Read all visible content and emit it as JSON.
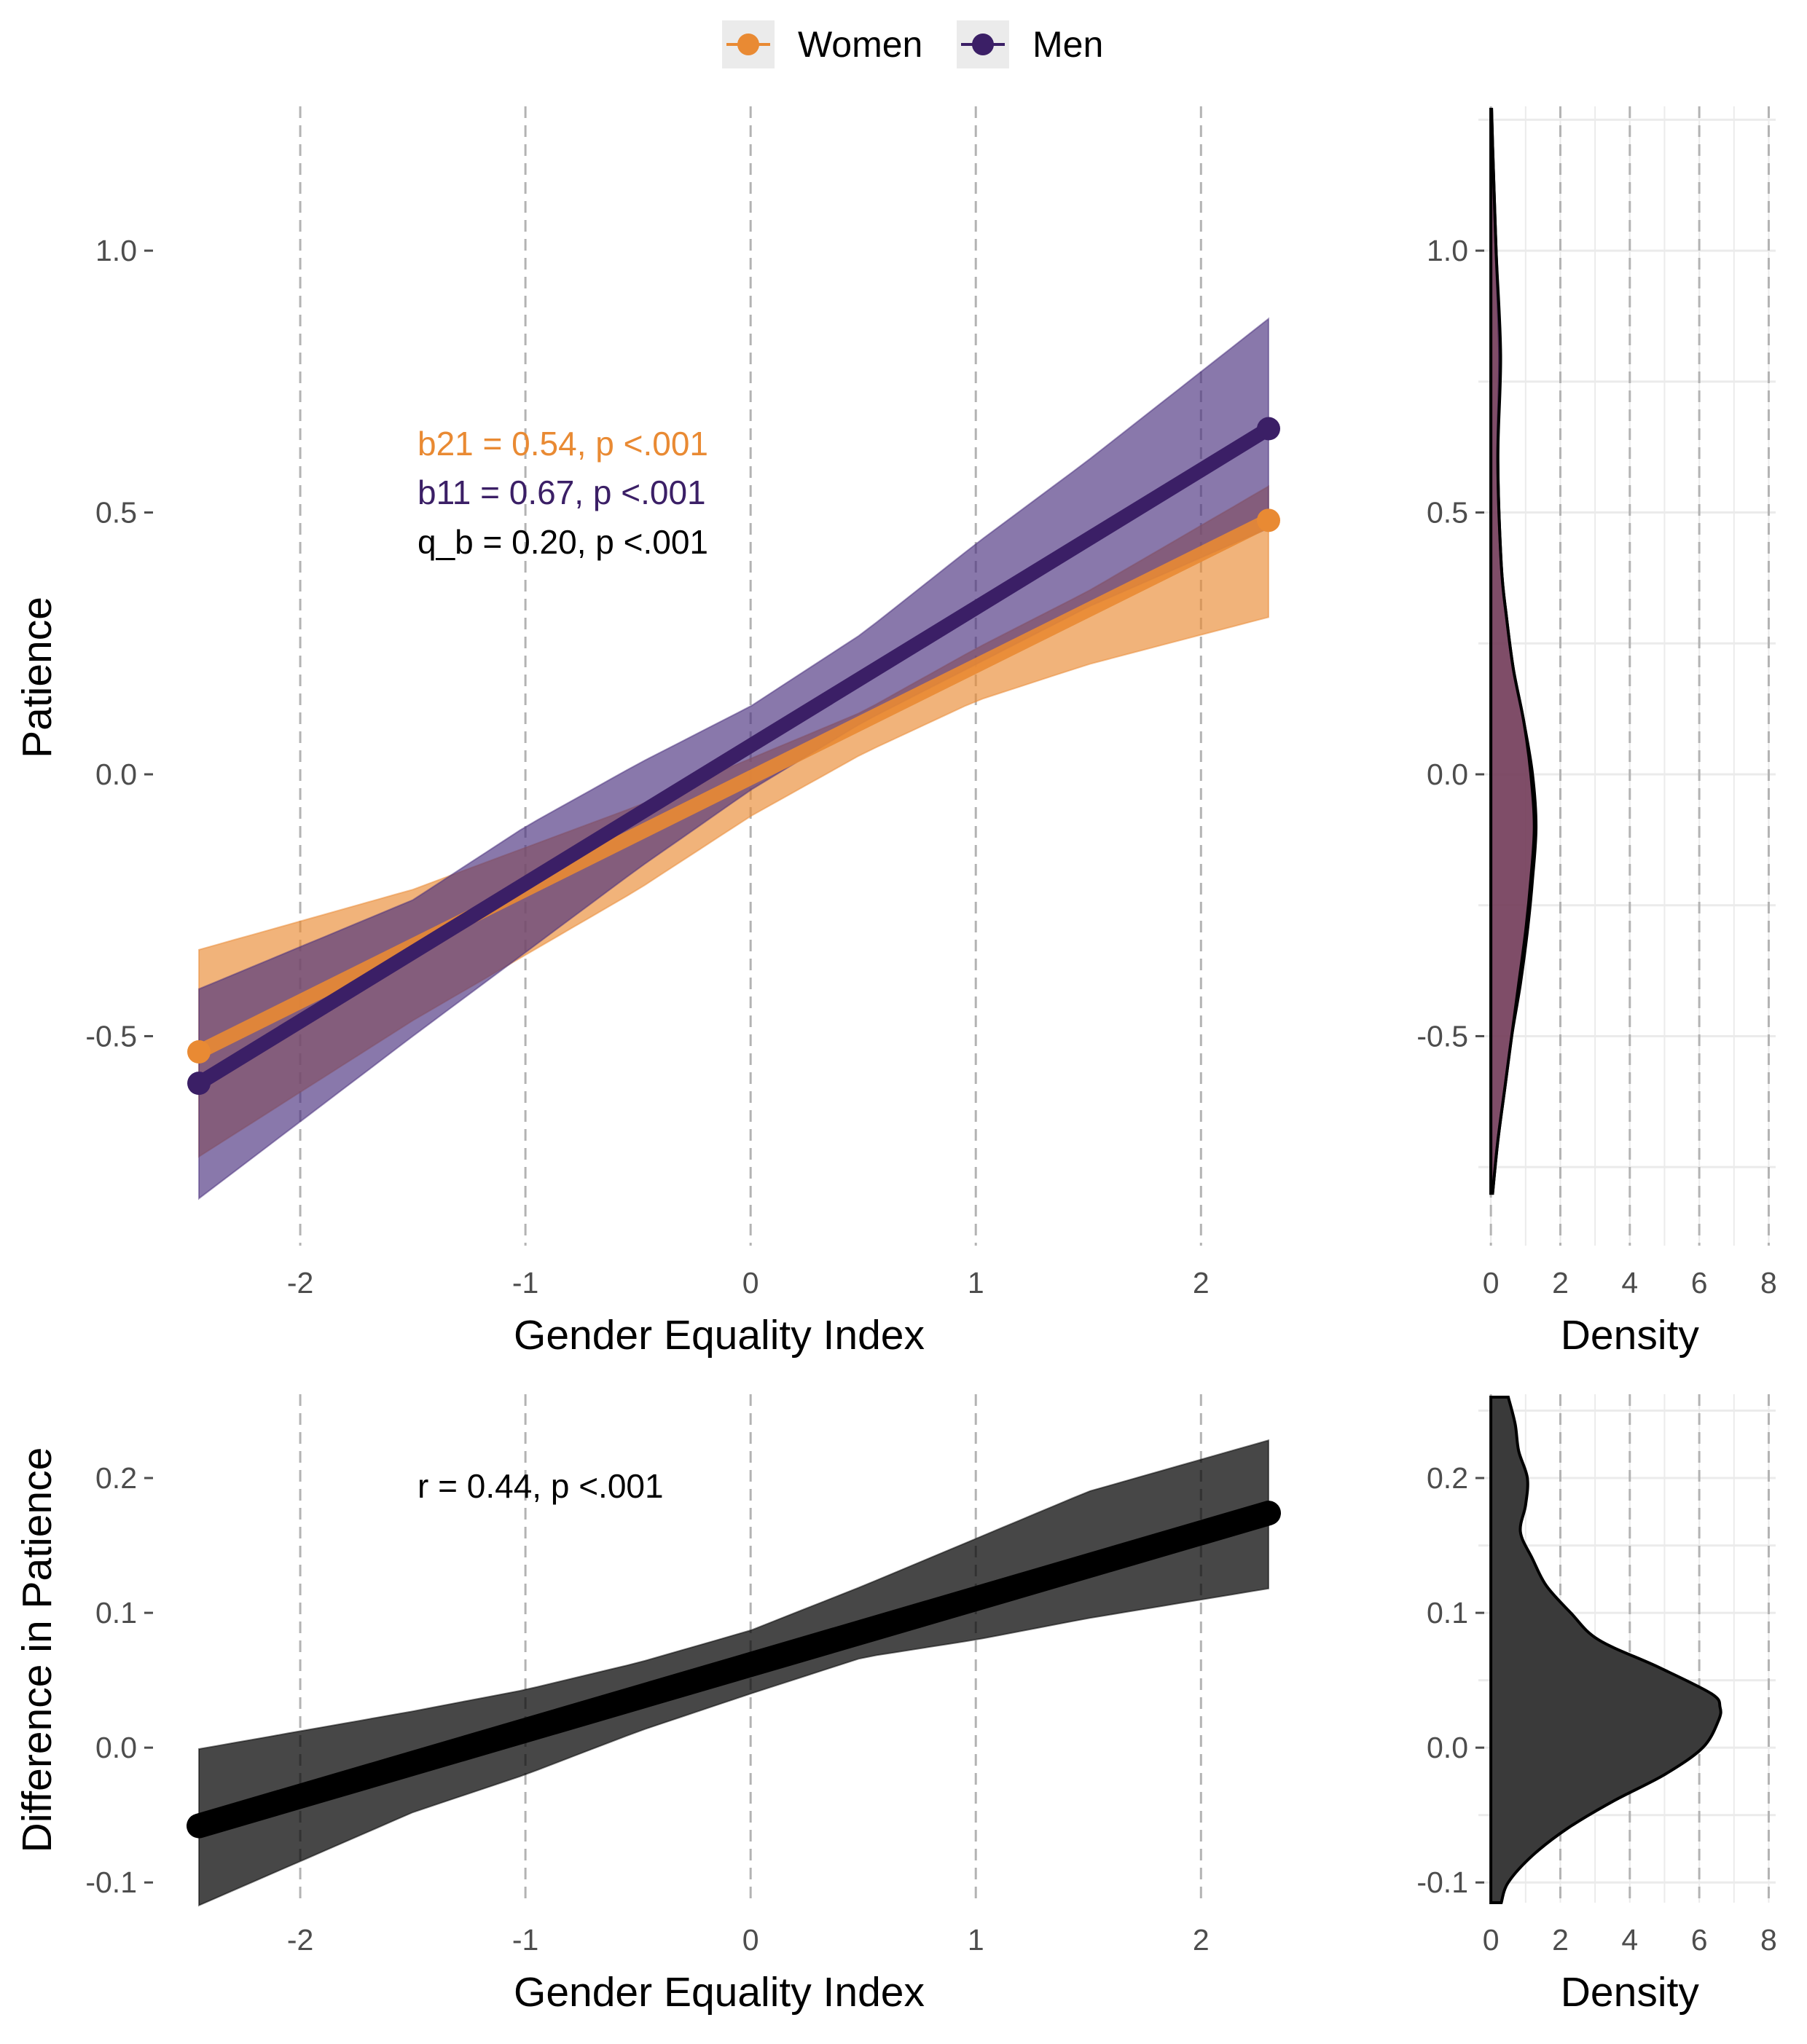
{
  "legend": {
    "items": [
      {
        "label": "Women",
        "color": "#E98A33"
      },
      {
        "label": "Men",
        "color": "#3B1F66"
      }
    ]
  },
  "chart_data": [
    {
      "panel": "top-main",
      "type": "line",
      "xlabel": "Gender Equality Index",
      "ylabel": "Patience",
      "xlim": [
        -2.45,
        2.3
      ],
      "ylim": [
        -0.9,
        1.27
      ],
      "xticks": [
        "-2",
        "-1",
        "0",
        "1",
        "2"
      ],
      "xtick_values": [
        -2,
        -1,
        0,
        1,
        2
      ],
      "yticks": [
        "-0.5",
        "0.0",
        "0.5",
        "1.0"
      ],
      "ytick_values": [
        -0.5,
        0.0,
        0.5,
        1.0
      ],
      "grid": "dashed vertical at x ticks",
      "series": [
        {
          "name": "Women",
          "color": "#E98A33",
          "x": [
            -2.45,
            2.3
          ],
          "y": [
            -0.53,
            0.485
          ],
          "band": {
            "x": [
              -2.45,
              -1.5,
              -0.5,
              0.0,
              0.5,
              1.0,
              1.5,
              2.3
            ],
            "lower": [
              -0.73,
              -0.47,
              -0.22,
              -0.08,
              0.04,
              0.14,
              0.21,
              0.3
            ],
            "upper": [
              -0.335,
              -0.22,
              -0.06,
              0.03,
              0.12,
              0.24,
              0.35,
              0.55
            ]
          }
        },
        {
          "name": "Men",
          "color": "#3B1F66",
          "x": [
            -2.45,
            2.3
          ],
          "y": [
            -0.59,
            0.66
          ],
          "band": {
            "x": [
              -2.45,
              -1.5,
              -1.0,
              -0.5,
              0.0,
              0.5,
              1.0,
              1.5,
              2.3
            ],
            "lower": [
              -0.81,
              -0.5,
              -0.34,
              -0.18,
              -0.03,
              0.1,
              0.21,
              0.32,
              0.47
            ],
            "upper": [
              -0.41,
              -0.24,
              -0.1,
              0.02,
              0.13,
              0.27,
              0.44,
              0.6,
              0.87
            ]
          }
        }
      ],
      "annotations": [
        {
          "text": "b21 = 0.54, p <.001",
          "color": "#E98A33"
        },
        {
          "text": "b11 = 0.67, p <.001",
          "color": "#3B1F66"
        },
        {
          "text": "q_b = 0.20, p <.001",
          "color": "#000000"
        }
      ]
    },
    {
      "panel": "top-density",
      "type": "area",
      "xlabel": "Density",
      "xlim": [
        -0.15,
        8.2
      ],
      "ylim": [
        -0.9,
        1.27
      ],
      "xticks": [
        "0",
        "2",
        "4",
        "6",
        "8"
      ],
      "xtick_values": [
        0,
        2,
        4,
        6,
        8
      ],
      "yticks": [
        "-0.5",
        "0.0",
        "0.5",
        "1.0"
      ],
      "ytick_values": [
        -0.5,
        0.0,
        0.5,
        1.0
      ],
      "series": [
        {
          "name": "Women",
          "color": "#E98A33",
          "y": [
            -0.8,
            -0.7,
            -0.6,
            -0.5,
            -0.4,
            -0.3,
            -0.2,
            -0.1,
            0.0,
            0.1,
            0.2,
            0.3,
            0.4,
            0.6,
            0.8,
            1.0,
            1.2,
            1.27
          ],
          "density": [
            0.05,
            0.2,
            0.4,
            0.6,
            0.85,
            1.05,
            1.2,
            1.3,
            1.2,
            0.95,
            0.65,
            0.45,
            0.3,
            0.2,
            0.25,
            0.15,
            0.05,
            0.02
          ]
        },
        {
          "name": "Men",
          "color": "#5A2D66",
          "y": [
            -0.8,
            -0.7,
            -0.6,
            -0.5,
            -0.4,
            -0.3,
            -0.2,
            -0.1,
            0.0,
            0.1,
            0.2,
            0.3,
            0.4,
            0.6,
            0.8,
            1.0,
            1.2,
            1.27
          ],
          "density": [
            0.05,
            0.2,
            0.4,
            0.6,
            0.8,
            1.0,
            1.15,
            1.25,
            1.15,
            0.95,
            0.65,
            0.45,
            0.3,
            0.2,
            0.28,
            0.15,
            0.05,
            0.02
          ]
        }
      ]
    },
    {
      "panel": "bottom-main",
      "type": "line",
      "xlabel": "Gender Equality Index",
      "ylabel": "Difference in Patience",
      "xlim": [
        -2.45,
        2.3
      ],
      "ylim": [
        -0.115,
        0.26
      ],
      "xticks": [
        "-2",
        "-1",
        "0",
        "1",
        "2"
      ],
      "xtick_values": [
        -2,
        -1,
        0,
        1,
        2
      ],
      "yticks": [
        "-0.1",
        "0.0",
        "0.1",
        "0.2"
      ],
      "ytick_values": [
        -0.1,
        0.0,
        0.1,
        0.2
      ],
      "series": [
        {
          "name": "",
          "color": "#000000",
          "x": [
            -2.45,
            2.3
          ],
          "y": [
            -0.058,
            0.174
          ],
          "band": {
            "x": [
              -2.45,
              -1.5,
              -1.0,
              -0.5,
              0.0,
              0.5,
              1.0,
              1.5,
              2.3
            ],
            "lower": [
              -0.117,
              -0.048,
              -0.02,
              0.012,
              0.04,
              0.067,
              0.08,
              0.096,
              0.118
            ],
            "upper": [
              -0.001,
              0.027,
              0.043,
              0.063,
              0.087,
              0.12,
              0.155,
              0.19,
              0.228
            ]
          }
        }
      ],
      "annotations": [
        {
          "text": "r = 0.44, p <.001",
          "color": "#000000"
        }
      ]
    },
    {
      "panel": "bottom-density",
      "type": "area",
      "xlabel": "Density",
      "xlim": [
        -0.15,
        8.2
      ],
      "ylim": [
        -0.115,
        0.26
      ],
      "xticks": [
        "0",
        "2",
        "4",
        "6",
        "8"
      ],
      "xtick_values": [
        0,
        2,
        4,
        6,
        8
      ],
      "yticks": [
        "-0.1",
        "0.0",
        "0.1",
        "0.2"
      ],
      "ytick_values": [
        -0.1,
        0.0,
        0.1,
        0.2
      ],
      "series": [
        {
          "name": "",
          "color": "#3a3a3a",
          "y": [
            -0.115,
            -0.1,
            -0.08,
            -0.06,
            -0.04,
            -0.02,
            0.0,
            0.02,
            0.03,
            0.04,
            0.06,
            0.08,
            0.1,
            0.12,
            0.14,
            0.16,
            0.18,
            0.2,
            0.22,
            0.24,
            0.26
          ],
          "density": [
            0.3,
            0.5,
            1.2,
            2.2,
            3.5,
            5.0,
            6.1,
            6.55,
            6.6,
            6.35,
            4.8,
            3.1,
            2.3,
            1.6,
            1.2,
            0.85,
            1.0,
            1.05,
            0.8,
            0.7,
            0.5
          ]
        }
      ]
    }
  ]
}
